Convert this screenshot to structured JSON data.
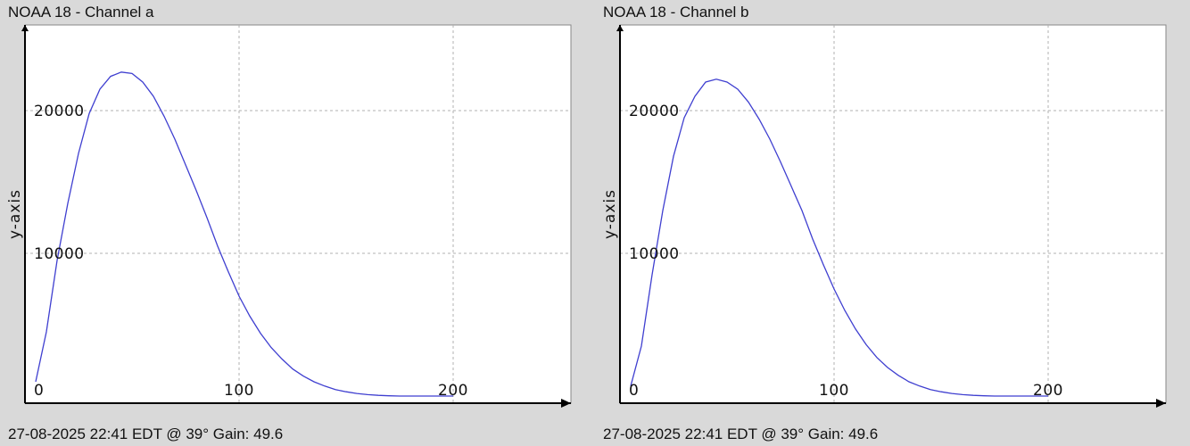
{
  "charts": [
    {
      "title": "NOAA 18 - Channel a",
      "footer": "27-08-2025 22:41 EDT @ 39° Gain: 49.6"
    },
    {
      "title": "NOAA 18 - Channel b",
      "footer": "27-08-2025 22:41 EDT @ 39° Gain: 49.6"
    }
  ],
  "colors": {
    "background": "#d9d9d9",
    "plot_area": "#ffffff",
    "line": "#3f3fd0",
    "grid": "#b0b0b0",
    "axis": "#000000"
  },
  "chart_data": [
    {
      "type": "line",
      "title": "NOAA 18 - Channel a",
      "ylabel": "y-axis",
      "xlabel": "",
      "xlim": [
        0,
        255
      ],
      "ylim": [
        -500,
        26000
      ],
      "xticks": [
        0,
        100,
        200
      ],
      "yticks": [
        10000,
        20000
      ],
      "x_tick_labels": [
        "0",
        "100",
        "200"
      ],
      "y_tick_labels": [
        "10000",
        "20000"
      ],
      "grid": true,
      "series": [
        {
          "x": [
            5,
            10,
            15,
            20,
            25,
            30,
            35,
            40,
            45,
            50,
            55,
            60,
            65,
            70,
            75,
            80,
            85,
            90,
            95,
            100,
            105,
            110,
            115,
            120,
            125,
            130,
            135,
            140,
            145,
            150,
            155,
            160,
            165,
            170,
            175,
            180,
            185,
            190,
            195,
            200
          ],
          "y": [
            1000,
            4500,
            9500,
            13500,
            17000,
            19800,
            21500,
            22400,
            22700,
            22600,
            22000,
            21000,
            19600,
            18000,
            16200,
            14400,
            12500,
            10500,
            8700,
            7000,
            5600,
            4400,
            3400,
            2600,
            1900,
            1400,
            1000,
            700,
            450,
            300,
            180,
            100,
            50,
            20,
            0,
            0,
            0,
            0,
            0,
            0
          ]
        }
      ]
    },
    {
      "type": "line",
      "title": "NOAA 18 - Channel b",
      "ylabel": "y-axis",
      "xlabel": "",
      "xlim": [
        0,
        255
      ],
      "ylim": [
        -500,
        26000
      ],
      "xticks": [
        0,
        100,
        200
      ],
      "yticks": [
        10000,
        20000
      ],
      "x_tick_labels": [
        "0",
        "100",
        "200"
      ],
      "y_tick_labels": [
        "10000",
        "20000"
      ],
      "grid": true,
      "series": [
        {
          "x": [
            5,
            10,
            15,
            20,
            25,
            30,
            35,
            40,
            45,
            50,
            55,
            60,
            65,
            70,
            75,
            80,
            85,
            90,
            95,
            100,
            105,
            110,
            115,
            120,
            125,
            130,
            135,
            140,
            145,
            150,
            155,
            160,
            165,
            170,
            175,
            180,
            185,
            190,
            195,
            200
          ],
          "y": [
            700,
            3500,
            8500,
            13000,
            16800,
            19500,
            21000,
            22000,
            22200,
            22000,
            21500,
            20600,
            19400,
            18000,
            16400,
            14700,
            13000,
            11000,
            9200,
            7500,
            6000,
            4700,
            3600,
            2700,
            2000,
            1450,
            1000,
            700,
            450,
            300,
            180,
            100,
            50,
            20,
            0,
            0,
            0,
            0,
            0,
            0
          ]
        }
      ]
    }
  ]
}
